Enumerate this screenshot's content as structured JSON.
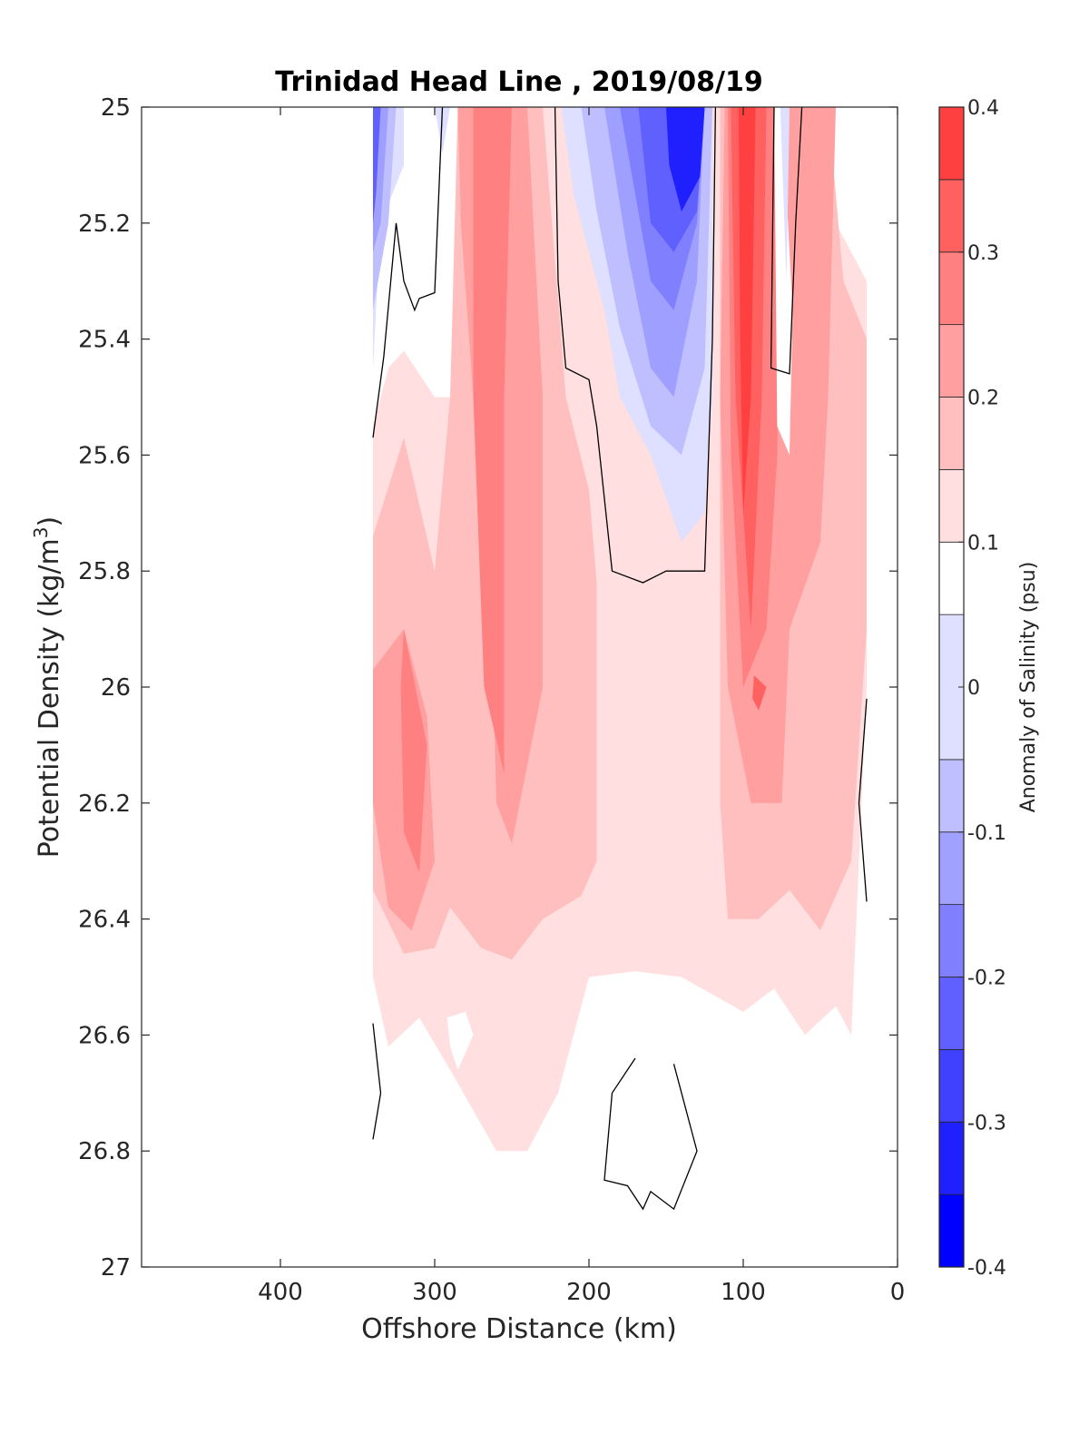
{
  "chart_data": {
    "type": "heatmap",
    "subtype": "filled-contour",
    "title": "Trinidad Head Line , 2019/08/19",
    "xlabel": "Offshore Distance (km)",
    "ylabel_main": "Potential Density (kg/m",
    "ylabel_sup": "3",
    "ylabel_tail": ")",
    "xlim": [
      490,
      0
    ],
    "ylim": [
      25,
      27
    ],
    "x_ticks": [
      400,
      300,
      200,
      100,
      0
    ],
    "x_tick_labels": [
      "400",
      "300",
      "200",
      "100",
      "0"
    ],
    "y_ticks": [
      25,
      25.2,
      25.4,
      25.6,
      25.8,
      26,
      26.2,
      26.4,
      26.6,
      26.8,
      27
    ],
    "y_tick_labels": [
      "25",
      "25.2",
      "25.4",
      "25.6",
      "25.8",
      "26",
      "26.2",
      "26.4",
      "26.6",
      "26.8",
      "27"
    ],
    "colorbar": {
      "label": "Anomaly of Salinity (psu)",
      "range": [
        -0.4,
        0.4
      ],
      "tick_values": [
        -0.4,
        -0.3,
        -0.2,
        -0.1,
        0,
        0.1,
        0.2,
        0.3,
        0.4
      ],
      "tick_labels": [
        "-0.4",
        "-0.3",
        "-0.2",
        "-0.1",
        "0",
        "0.1",
        "0.2",
        "0.3",
        "0.4"
      ],
      "levels": [
        -0.4,
        -0.35,
        -0.3,
        -0.25,
        -0.2,
        -0.15,
        -0.1,
        -0.05,
        0.05,
        0.1,
        0.15,
        0.2,
        0.25,
        0.3,
        0.35,
        0.4
      ],
      "colors": [
        "#0000ff",
        "#2020ff",
        "#4040ff",
        "#6060ff",
        "#8080ff",
        "#a0a0ff",
        "#bfbfff",
        "#dfdfff",
        "#ffffff",
        "#ffdfdf",
        "#ffbfbf",
        "#ff9f9f",
        "#ff8080",
        "#ff6060",
        "#ff4040",
        "#ff2020",
        "#ff0000"
      ]
    },
    "data_extent_x": [
      340,
      20
    ],
    "regions": [
      {
        "color": "#ffdfdf",
        "points": [
          [
            340,
            25.55
          ],
          [
            330,
            25.45
          ],
          [
            320,
            25.42
          ],
          [
            300,
            25.5
          ],
          [
            280,
            25.5
          ],
          [
            270,
            25.0
          ],
          [
            50,
            25.0
          ],
          [
            40,
            25.2
          ],
          [
            20,
            25.3
          ],
          [
            20,
            26.0
          ],
          [
            30,
            26.6
          ],
          [
            40,
            26.55
          ],
          [
            60,
            26.6
          ],
          [
            80,
            26.52
          ],
          [
            100,
            26.56
          ],
          [
            140,
            26.5
          ],
          [
            170,
            26.49
          ],
          [
            200,
            26.5
          ],
          [
            220,
            26.7
          ],
          [
            240,
            26.8
          ],
          [
            260,
            26.8
          ],
          [
            290,
            26.66
          ],
          [
            310,
            26.57
          ],
          [
            330,
            26.62
          ],
          [
            340,
            26.5
          ]
        ]
      },
      {
        "color": "#ffbfbf",
        "points": [
          [
            340,
            25.74
          ],
          [
            320,
            25.57
          ],
          [
            300,
            25.8
          ],
          [
            290,
            25.5
          ],
          [
            285,
            25.0
          ],
          [
            230,
            25.0
          ],
          [
            215,
            25.5
          ],
          [
            200,
            25.66
          ],
          [
            195,
            25.82
          ],
          [
            195,
            26.3
          ],
          [
            205,
            26.36
          ],
          [
            230,
            26.4
          ],
          [
            250,
            26.47
          ],
          [
            270,
            26.45
          ],
          [
            290,
            26.38
          ],
          [
            300,
            26.45
          ],
          [
            320,
            26.46
          ],
          [
            340,
            26.35
          ]
        ]
      },
      {
        "color": "#ffbfbf",
        "points": [
          [
            115,
            25.0
          ],
          [
            45,
            25.0
          ],
          [
            35,
            25.3
          ],
          [
            20,
            25.4
          ],
          [
            20,
            25.9
          ],
          [
            30,
            26.3
          ],
          [
            50,
            26.42
          ],
          [
            70,
            26.35
          ],
          [
            90,
            26.4
          ],
          [
            110,
            26.4
          ],
          [
            115,
            26.2
          ]
        ]
      },
      {
        "color": "#ff9f9f",
        "points": [
          [
            340,
            25.97
          ],
          [
            320,
            25.9
          ],
          [
            305,
            26.05
          ],
          [
            300,
            26.3
          ],
          [
            315,
            26.42
          ],
          [
            330,
            26.38
          ],
          [
            340,
            26.2
          ]
        ]
      },
      {
        "color": "#ff9f9f",
        "points": [
          [
            285,
            25.0
          ],
          [
            240,
            25.0
          ],
          [
            230,
            25.5
          ],
          [
            230,
            26.0
          ],
          [
            250,
            26.27
          ],
          [
            260,
            26.2
          ],
          [
            265,
            25.7
          ],
          [
            275,
            25.5
          ],
          [
            283,
            25.2
          ]
        ]
      },
      {
        "color": "#ff9f9f",
        "points": [
          [
            112,
            25.0
          ],
          [
            40,
            25.0
          ],
          [
            45,
            25.5
          ],
          [
            50,
            25.75
          ],
          [
            70,
            25.9
          ],
          [
            75,
            26.2
          ],
          [
            95,
            26.2
          ],
          [
            110,
            26.0
          ],
          [
            115,
            25.5
          ]
        ]
      },
      {
        "color": "#ff8080",
        "points": [
          [
            320,
            25.9
          ],
          [
            305,
            26.1
          ],
          [
            310,
            26.32
          ],
          [
            320,
            26.25
          ],
          [
            322,
            26.0
          ]
        ]
      },
      {
        "color": "#ff8080",
        "points": [
          [
            275,
            25.0
          ],
          [
            250,
            25.0
          ],
          [
            255,
            25.5
          ],
          [
            255,
            26.15
          ],
          [
            268,
            26.0
          ],
          [
            275,
            25.5
          ]
        ]
      },
      {
        "color": "#ff8080",
        "points": [
          [
            110,
            25.0
          ],
          [
            75,
            25.0
          ],
          [
            78,
            25.6
          ],
          [
            85,
            25.9
          ],
          [
            100,
            26.0
          ],
          [
            108,
            25.6
          ]
        ]
      },
      {
        "color": "#ff6060",
        "points": [
          [
            108,
            25.0
          ],
          [
            85,
            25.0
          ],
          [
            88,
            25.5
          ],
          [
            95,
            25.9
          ],
          [
            105,
            25.5
          ]
        ]
      },
      {
        "color": "#ff4040",
        "points": [
          [
            103,
            25.0
          ],
          [
            92,
            25.0
          ],
          [
            95,
            25.5
          ],
          [
            100,
            25.7
          ],
          [
            102,
            25.4
          ]
        ]
      },
      {
        "color": "#ff6060",
        "points": [
          [
            93,
            25.98
          ],
          [
            85,
            26.0
          ],
          [
            90,
            26.04
          ],
          [
            94,
            26.02
          ]
        ]
      },
      {
        "color": "#dfdfff",
        "points": [
          [
            340,
            25.0
          ],
          [
            320,
            25.0
          ],
          [
            320,
            25.1
          ],
          [
            335,
            25.2
          ],
          [
            340,
            25.45
          ]
        ]
      },
      {
        "color": "#bfbfff",
        "points": [
          [
            340,
            25.0
          ],
          [
            325,
            25.0
          ],
          [
            330,
            25.2
          ],
          [
            340,
            25.35
          ]
        ]
      },
      {
        "color": "#9f9fff",
        "points": [
          [
            340,
            25.0
          ],
          [
            330,
            25.0
          ],
          [
            335,
            25.2
          ],
          [
            340,
            25.25
          ]
        ]
      },
      {
        "color": "#6060ff",
        "points": [
          [
            340,
            25.0
          ],
          [
            335,
            25.0
          ],
          [
            338,
            25.15
          ],
          [
            340,
            25.2
          ]
        ]
      },
      {
        "color": "#dfdfff",
        "points": [
          [
            300,
            25.0
          ],
          [
            290,
            25.0
          ],
          [
            295,
            25.08
          ]
        ]
      },
      {
        "color": "#dfdfff",
        "points": [
          [
            218,
            25.0
          ],
          [
            120,
            25.0
          ],
          [
            120,
            25.5
          ],
          [
            125,
            25.7
          ],
          [
            140,
            25.75
          ],
          [
            160,
            25.6
          ],
          [
            180,
            25.5
          ],
          [
            190,
            25.35
          ],
          [
            210,
            25.15
          ]
        ]
      },
      {
        "color": "#bfbfff",
        "points": [
          [
            205,
            25.0
          ],
          [
            120,
            25.0
          ],
          [
            125,
            25.45
          ],
          [
            140,
            25.6
          ],
          [
            160,
            25.55
          ],
          [
            180,
            25.38
          ],
          [
            195,
            25.18
          ]
        ]
      },
      {
        "color": "#9f9fff",
        "points": [
          [
            190,
            25.0
          ],
          [
            125,
            25.0
          ],
          [
            130,
            25.3
          ],
          [
            145,
            25.5
          ],
          [
            160,
            25.45
          ],
          [
            175,
            25.25
          ]
        ]
      },
      {
        "color": "#8080ff",
        "points": [
          [
            180,
            25.0
          ],
          [
            125,
            25.0
          ],
          [
            130,
            25.2
          ],
          [
            145,
            25.35
          ],
          [
            160,
            25.3
          ],
          [
            170,
            25.15
          ]
        ]
      },
      {
        "color": "#6060ff",
        "points": [
          [
            168,
            25.0
          ],
          [
            125,
            25.0
          ],
          [
            130,
            25.18
          ],
          [
            145,
            25.25
          ],
          [
            160,
            25.2
          ]
        ]
      },
      {
        "color": "#2020ff",
        "points": [
          [
            150,
            25.0
          ],
          [
            125,
            25.0
          ],
          [
            128,
            25.12
          ],
          [
            140,
            25.18
          ],
          [
            148,
            25.1
          ]
        ]
      },
      {
        "color": "#ffffff",
        "points": [
          [
            292,
            26.57
          ],
          [
            290,
            26.62
          ],
          [
            285,
            26.66
          ],
          [
            275,
            26.6
          ],
          [
            280,
            26.56
          ]
        ]
      },
      {
        "color": "#ffffff",
        "points": [
          [
            95,
            25.0
          ],
          [
            80,
            25.0
          ],
          [
            78,
            25.55
          ],
          [
            70,
            25.6
          ],
          [
            68,
            25.35
          ],
          [
            75,
            25.0
          ]
        ]
      },
      {
        "color": "#dfdfff",
        "points": [
          [
            76,
            25.0
          ],
          [
            70,
            25.0
          ],
          [
            72,
            25.3
          ]
        ]
      }
    ],
    "contour_lines_zero": [
      [
        [
          340,
          25.57
        ],
        [
          333,
          25.43
        ],
        [
          325,
          25.2
        ],
        [
          320,
          25.3
        ],
        [
          313,
          25.35
        ],
        [
          310,
          25.33
        ],
        [
          300,
          25.32
        ],
        [
          295,
          25.0
        ]
      ],
      [
        [
          222,
          25.0
        ],
        [
          220,
          25.3
        ],
        [
          215,
          25.45
        ],
        [
          200,
          25.47
        ],
        [
          195,
          25.55
        ],
        [
          185,
          25.8
        ],
        [
          165,
          25.82
        ],
        [
          150,
          25.8
        ],
        [
          125,
          25.8
        ],
        [
          120,
          25.4
        ],
        [
          118,
          25.0
        ]
      ],
      [
        [
          80,
          25.0
        ],
        [
          82,
          25.45
        ],
        [
          70,
          25.46
        ],
        [
          66,
          25.2
        ],
        [
          62,
          25.0
        ]
      ],
      [
        [
          340,
          26.58
        ],
        [
          335,
          26.7
        ],
        [
          340,
          26.78
        ]
      ],
      [
        [
          170,
          26.64
        ],
        [
          185,
          26.7
        ],
        [
          190,
          26.85
        ],
        [
          175,
          26.86
        ],
        [
          165,
          26.9
        ],
        [
          160,
          26.87
        ],
        [
          145,
          26.9
        ],
        [
          130,
          26.8
        ],
        [
          145,
          26.65
        ]
      ],
      [
        [
          20,
          26.02
        ],
        [
          25,
          26.2
        ],
        [
          20,
          26.37
        ]
      ]
    ],
    "grid": false,
    "legend": "none"
  }
}
